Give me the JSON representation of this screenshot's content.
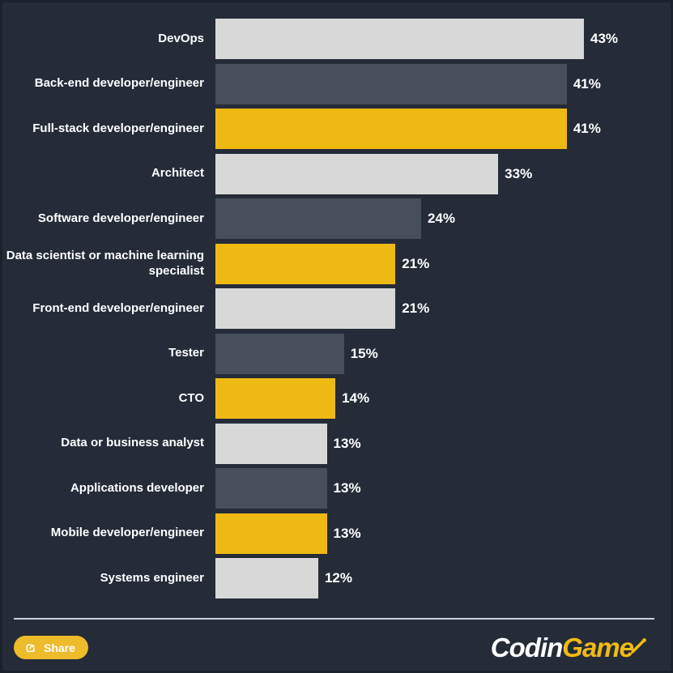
{
  "page": {
    "background": "#252c38",
    "border_color": "#1c222c"
  },
  "chart_data": {
    "type": "bar",
    "orientation": "horizontal",
    "title": "",
    "xlabel": "",
    "ylabel": "",
    "xlim": [
      0,
      43
    ],
    "grid": false,
    "legend": "none",
    "value_suffix": "%",
    "categories": [
      "DevOps",
      "Back-end developer/engineer",
      "Full-stack developer/engineer",
      "Architect",
      "Software developer/engineer",
      "Data scientist or machine learning specialist",
      "Front-end developer/engineer",
      "Tester",
      "CTO",
      "Data or business analyst",
      "Applications developer",
      "Mobile developer/engineer",
      "Systems engineer"
    ],
    "values": [
      43,
      41,
      41,
      33,
      24,
      21,
      21,
      15,
      14,
      13,
      13,
      13,
      12
    ],
    "value_labels": [
      "43%",
      "41%",
      "41%",
      "33%",
      "24%",
      "21%",
      "21%",
      "15%",
      "14%",
      "13%",
      "13%",
      "13%",
      "12%"
    ],
    "bar_color_keys": [
      "lightgray",
      "slate",
      "yellow",
      "lightgray",
      "slate",
      "yellow",
      "lightgray",
      "slate",
      "yellow",
      "lightgray",
      "slate",
      "yellow",
      "lightgray"
    ],
    "palette": {
      "lightgray": "#d8d8d8",
      "slate": "#474f5a",
      "yellow": "#efb914"
    },
    "label_color": "#ffffff",
    "value_label_color": "#ffffff"
  },
  "footer": {
    "share_label": "Share",
    "share_icon": "share-export-icon",
    "share_button_color": "#eebb2b",
    "logo": {
      "text_white": "Codin",
      "text_yellow": "Game",
      "yellow": "#f2bb13"
    }
  }
}
